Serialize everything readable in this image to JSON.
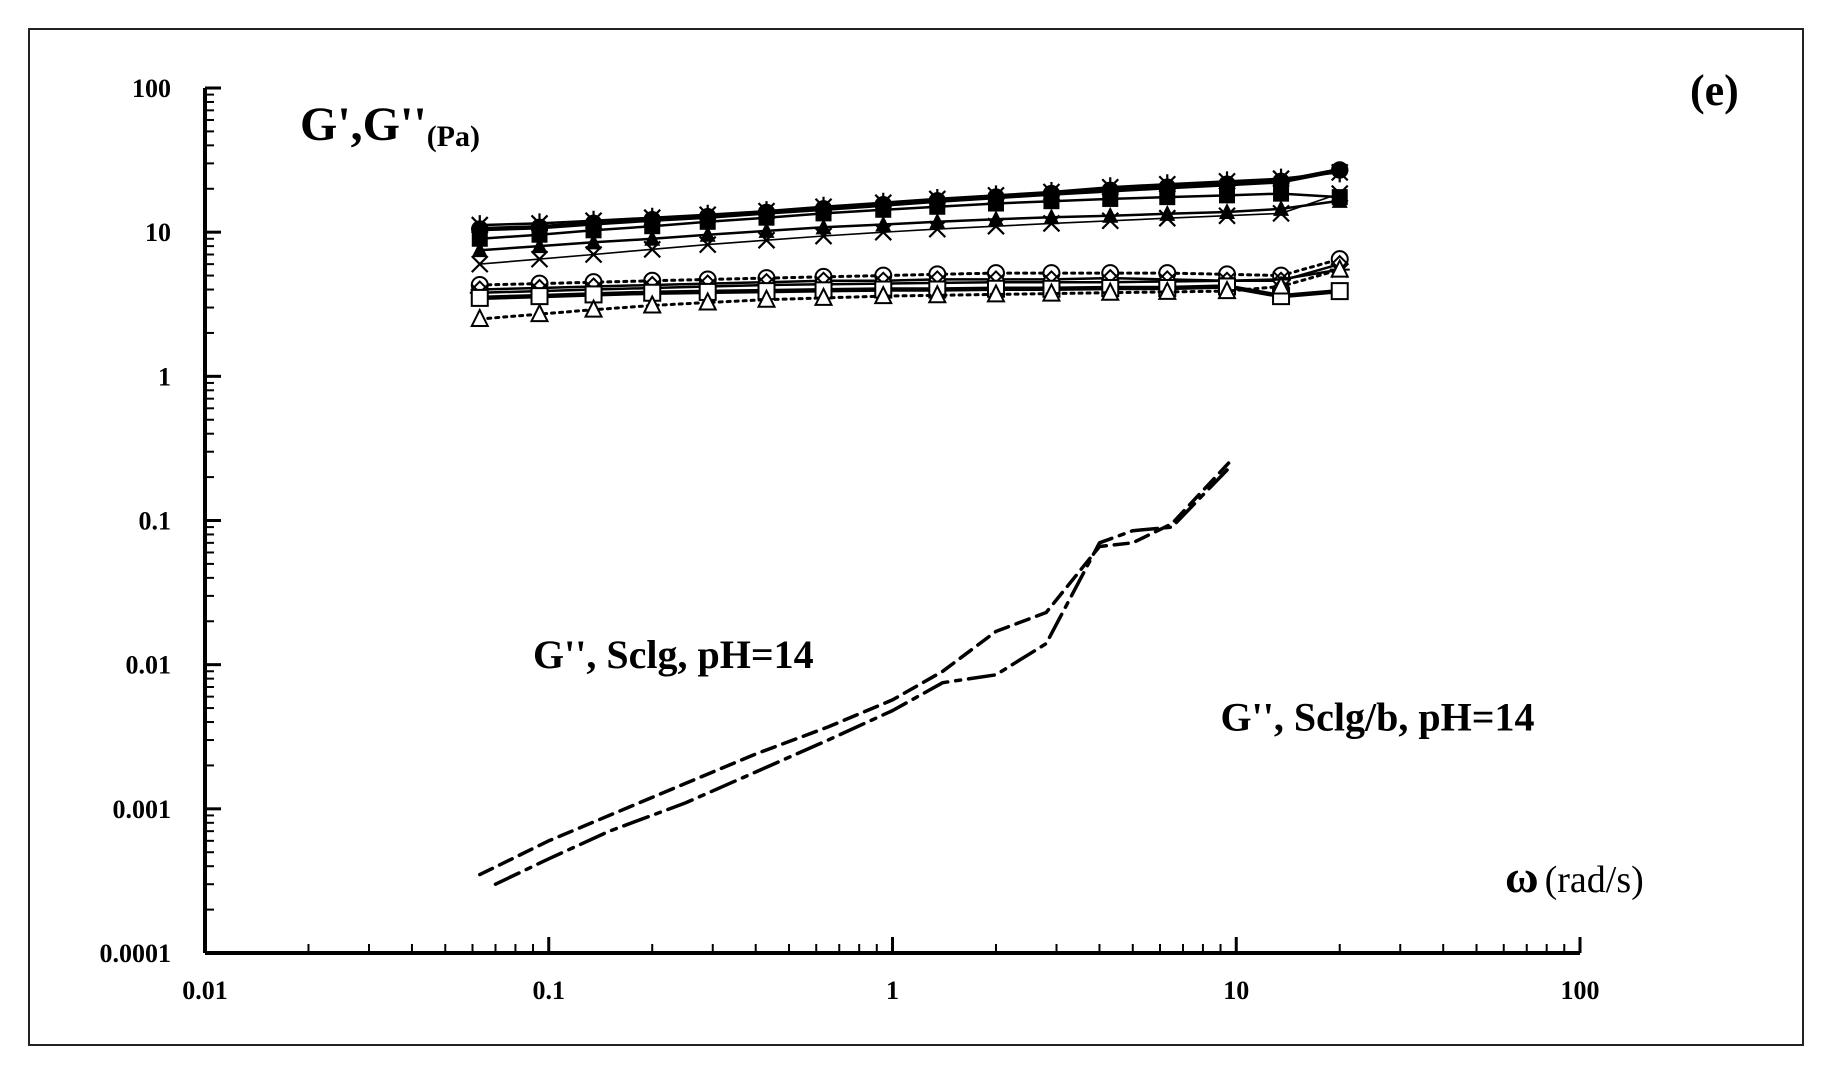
{
  "chart_data": {
    "type": "line",
    "panel_label": "(e)",
    "title": "",
    "ylabel": "G',G''",
    "ylabel_unit": "(Pa)",
    "xlabel": "ω",
    "xlabel_unit": "(rad/s)",
    "x_scale": "log",
    "y_scale": "log",
    "xlim": [
      0.01,
      100
    ],
    "ylim": [
      0.0001,
      100
    ],
    "x_ticks": [
      "0.01",
      "0.1",
      "1",
      "10",
      "100"
    ],
    "y_ticks": [
      "0.0001",
      "0.001",
      "0.01",
      "0.1",
      "1",
      "10",
      "100"
    ],
    "grid": false,
    "x_common": [
      0.063,
      0.094,
      0.135,
      0.2,
      0.29,
      0.43,
      0.63,
      0.94,
      1.35,
      2.0,
      2.9,
      4.3,
      6.3,
      9.4,
      13.5,
      20.0
    ],
    "series": [
      {
        "marker": "filled-circle",
        "line": "thick-solid",
        "color": "#000000",
        "values": [
          10.5,
          10.8,
          11.5,
          12.2,
          12.8,
          13.7,
          14.5,
          15.5,
          16.5,
          17.5,
          18.5,
          19.5,
          20.5,
          21.5,
          22.5,
          27.0
        ]
      },
      {
        "marker": "cross-star",
        "line": "solid",
        "color": "#000000",
        "values": [
          11.2,
          11.5,
          12.0,
          12.6,
          13.2,
          14.0,
          15.0,
          16.0,
          17.0,
          18.0,
          19.0,
          20.5,
          21.5,
          22.5,
          23.5,
          26.0
        ]
      },
      {
        "marker": "filled-square",
        "line": "solid",
        "color": "#000000",
        "values": [
          9.0,
          9.6,
          10.3,
          11.0,
          11.8,
          12.6,
          13.5,
          14.3,
          15.0,
          15.8,
          16.4,
          17.0,
          17.5,
          18.0,
          18.5,
          17.5
        ]
      },
      {
        "marker": "filled-triangle",
        "line": "solid",
        "color": "#000000",
        "values": [
          7.5,
          8.0,
          8.5,
          9.0,
          9.6,
          10.2,
          10.8,
          11.3,
          11.8,
          12.3,
          12.7,
          13.0,
          13.4,
          13.8,
          14.5,
          16.5
        ]
      },
      {
        "marker": "x",
        "line": "thin-solid",
        "color": "#000000",
        "values": [
          6.0,
          6.5,
          7.0,
          7.6,
          8.2,
          8.8,
          9.4,
          10.0,
          10.5,
          11.0,
          11.5,
          12.0,
          12.5,
          13.0,
          13.5,
          18.5
        ]
      },
      {
        "marker": "open-circle",
        "line": "dotted",
        "color": "#000000",
        "values": [
          4.3,
          4.4,
          4.5,
          4.6,
          4.7,
          4.8,
          4.9,
          5.0,
          5.1,
          5.2,
          5.2,
          5.2,
          5.2,
          5.1,
          5.0,
          6.5
        ]
      },
      {
        "marker": "open-diamond",
        "line": "solid",
        "color": "#000000",
        "values": [
          4.0,
          4.1,
          4.2,
          4.3,
          4.4,
          4.5,
          4.6,
          4.6,
          4.7,
          4.7,
          4.7,
          4.8,
          4.7,
          4.6,
          4.6,
          6.0
        ]
      },
      {
        "marker": "star",
        "line": "solid",
        "color": "#000000",
        "values": [
          3.8,
          3.9,
          4.0,
          4.1,
          4.2,
          4.3,
          4.35,
          4.4,
          4.45,
          4.5,
          4.5,
          4.5,
          4.55,
          4.6,
          4.7,
          5.5
        ]
      },
      {
        "marker": "open-square",
        "line": "thick-solid",
        "color": "#000000",
        "values": [
          3.5,
          3.6,
          3.7,
          3.8,
          3.85,
          3.9,
          3.95,
          4.0,
          4.0,
          4.05,
          4.05,
          4.1,
          4.1,
          4.2,
          3.6,
          3.9
        ]
      },
      {
        "marker": "open-triangle",
        "line": "dotted",
        "color": "#000000",
        "values": [
          2.5,
          2.7,
          2.9,
          3.1,
          3.25,
          3.4,
          3.5,
          3.6,
          3.65,
          3.7,
          3.75,
          3.8,
          3.85,
          3.9,
          4.2,
          5.5
        ]
      },
      {
        "name": "G'', Sclg, pH=14",
        "marker": "none",
        "line": "dashed",
        "color": "#000000",
        "x": [
          0.063,
          0.1,
          0.15,
          0.25,
          0.4,
          0.65,
          1.0,
          1.4,
          2.0,
          2.8,
          4.0,
          5.0,
          6.5,
          9.5
        ],
        "values": [
          0.00035,
          0.0006,
          0.0009,
          0.0015,
          0.0024,
          0.0037,
          0.0057,
          0.009,
          0.017,
          0.023,
          0.066,
          0.07,
          0.095,
          0.25
        ]
      },
      {
        "name": "G'', Sclg/b, pH=14",
        "marker": "none",
        "line": "dash-dot",
        "color": "#000000",
        "x": [
          0.07,
          0.1,
          0.15,
          0.25,
          0.4,
          0.65,
          1.0,
          1.4,
          2.0,
          2.8,
          4.0,
          5.0,
          6.5,
          9.5
        ],
        "values": [
          0.0003,
          0.00045,
          0.0007,
          0.0011,
          0.0018,
          0.003,
          0.0048,
          0.0075,
          0.0085,
          0.014,
          0.07,
          0.085,
          0.09,
          0.23
        ]
      }
    ],
    "annotations": [
      {
        "text": "G'', Sclg, pH=14",
        "x": 0.09,
        "y": 0.0095
      },
      {
        "text": "G'', Sclg/b, pH=14",
        "x": 9.0,
        "y": 0.0035
      }
    ]
  }
}
